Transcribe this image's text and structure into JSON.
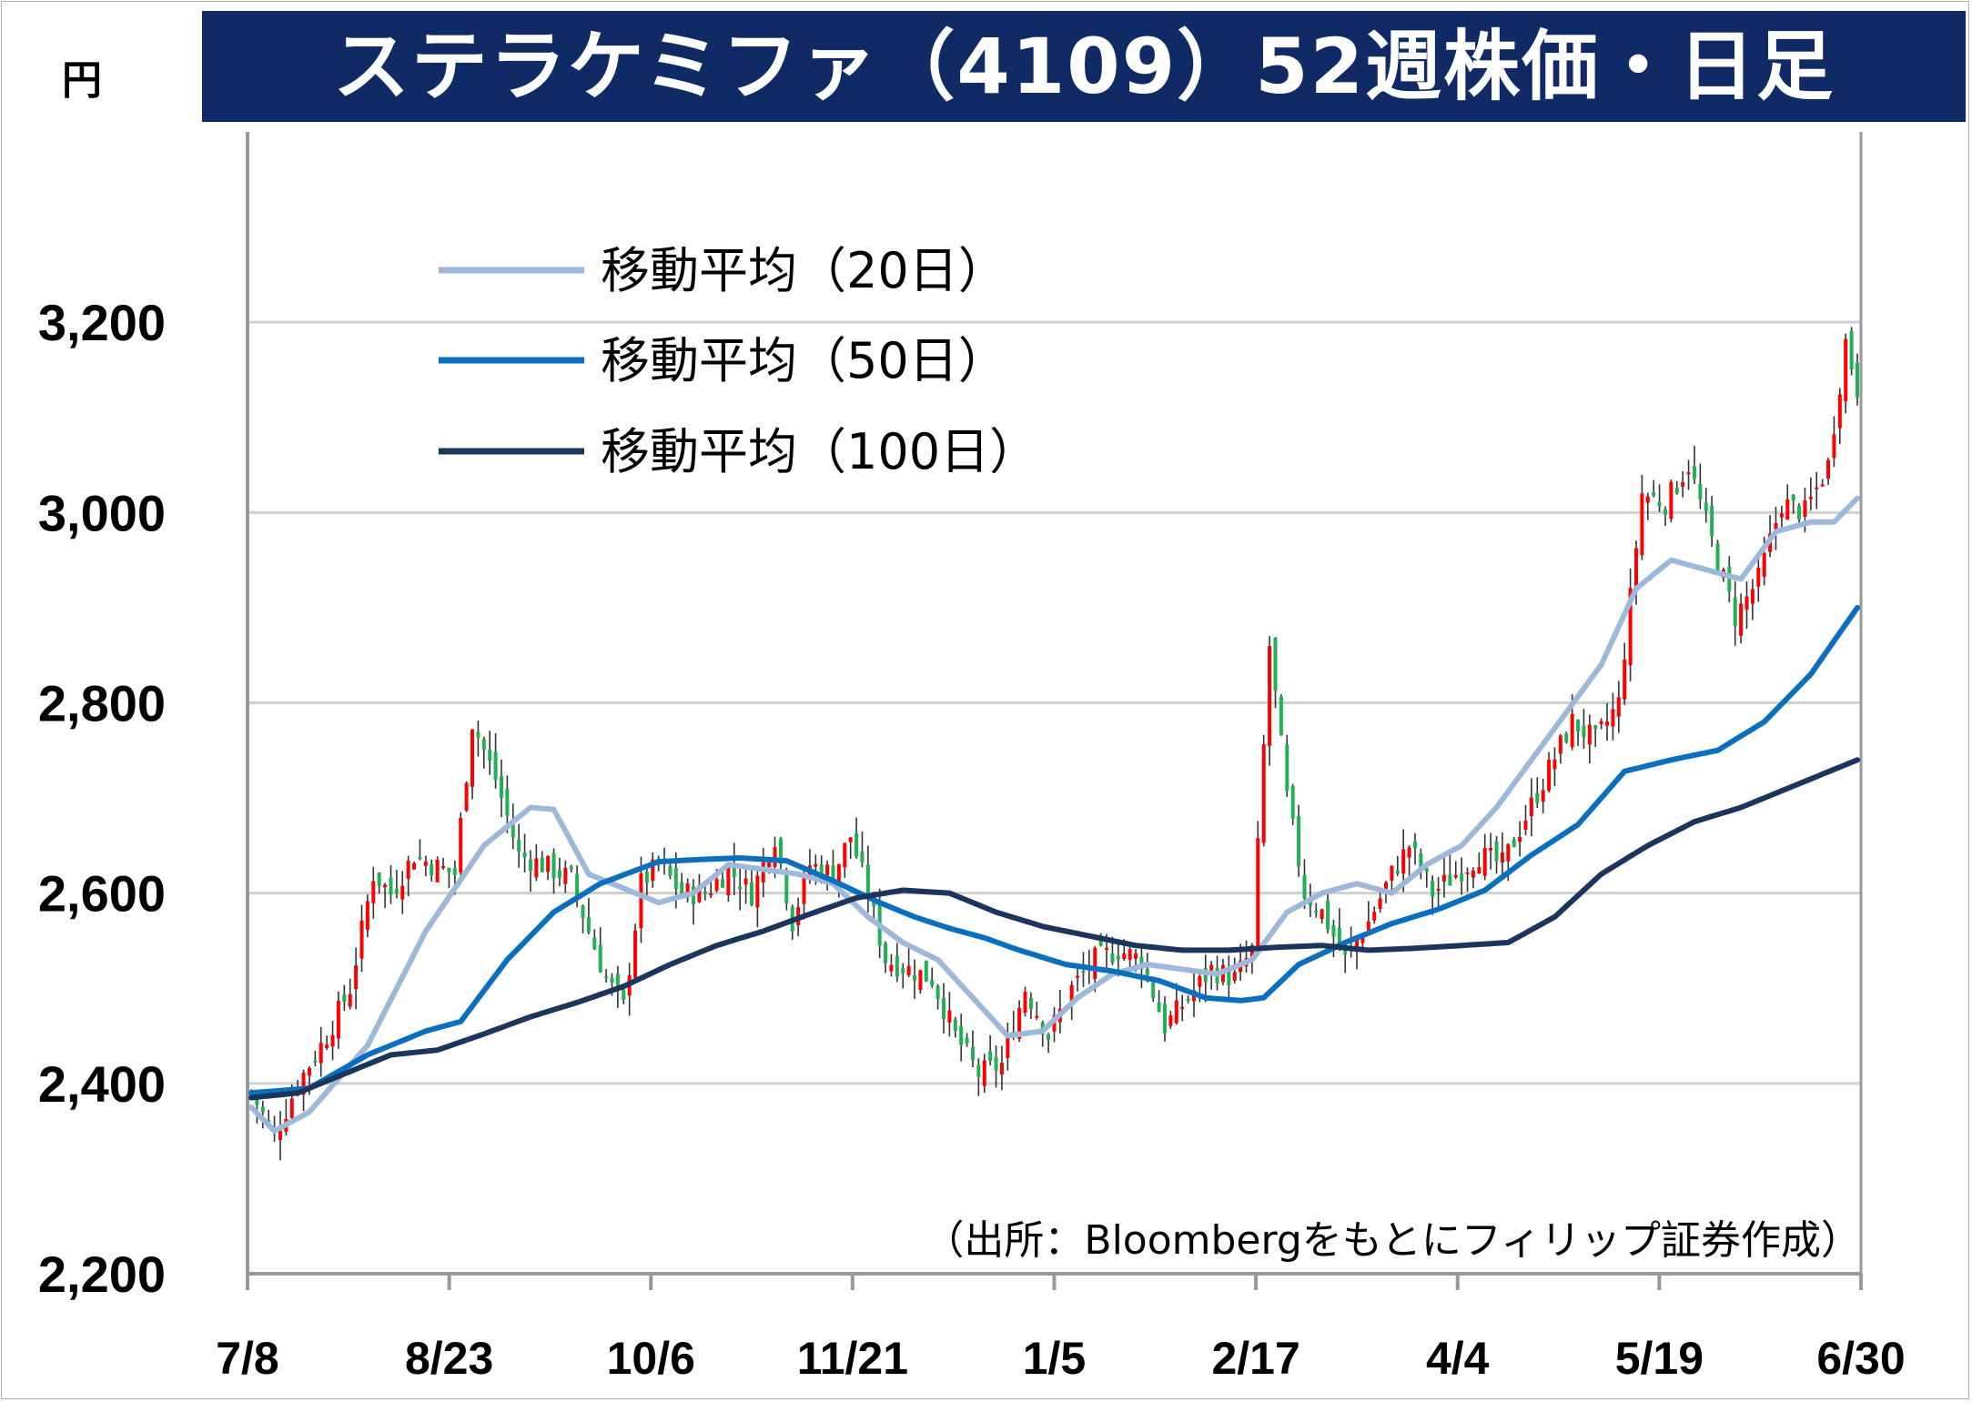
{
  "title": "ステラケミファ（4109）52週株価・日足",
  "unit": "円",
  "source": "（出所：Bloombergをもとにフィリップ証券作成）",
  "colors": {
    "title_bg": "#102a66",
    "up": "#ff0000",
    "down": "#1fb153",
    "ma20": "#9db8db",
    "ma50": "#0b6fc0",
    "ma100": "#1c355e",
    "grid": "#d0d0d0",
    "axis": "#999999"
  },
  "chart_data": {
    "type": "candlestick",
    "title": "ステラケミファ（4109）52週株価・日足",
    "ylabel": "円",
    "ylim": [
      2200,
      3400
    ],
    "yticks": [
      2200,
      2400,
      2600,
      2800,
      3000,
      3200
    ],
    "ytick_labels": [
      "2,200",
      "2,400",
      "2,600",
      "2,800",
      "3,000",
      "3,200"
    ],
    "xtick_labels": [
      "7/8",
      "8/23",
      "10/6",
      "11/21",
      "1/5",
      "2/17",
      "4/4",
      "5/19",
      "6/30"
    ],
    "grid": true,
    "legend_position": "top-left",
    "close_anchors": [
      [
        0,
        2390
      ],
      [
        4,
        2345
      ],
      [
        8,
        2400
      ],
      [
        13,
        2450
      ],
      [
        17,
        2500
      ],
      [
        21,
        2620
      ],
      [
        24,
        2600
      ],
      [
        28,
        2640
      ],
      [
        31,
        2630
      ],
      [
        35,
        2620
      ],
      [
        38,
        2780
      ],
      [
        42,
        2720
      ],
      [
        46,
        2640
      ],
      [
        50,
        2630
      ],
      [
        55,
        2615
      ],
      [
        58,
        2560
      ],
      [
        61,
        2510
      ],
      [
        64,
        2480
      ],
      [
        67,
        2610
      ],
      [
        70,
        2630
      ],
      [
        74,
        2600
      ],
      [
        78,
        2600
      ],
      [
        82,
        2625
      ],
      [
        86,
        2600
      ],
      [
        90,
        2660
      ],
      [
        93,
        2570
      ],
      [
        96,
        2630
      ],
      [
        100,
        2620
      ],
      [
        103,
        2660
      ],
      [
        106,
        2600
      ],
      [
        109,
        2530
      ],
      [
        113,
        2520
      ],
      [
        117,
        2510
      ],
      [
        121,
        2450
      ],
      [
        125,
        2410
      ],
      [
        129,
        2420
      ],
      [
        133,
        2500
      ],
      [
        137,
        2450
      ],
      [
        141,
        2500
      ],
      [
        145,
        2530
      ],
      [
        149,
        2540
      ],
      [
        153,
        2530
      ],
      [
        157,
        2460
      ],
      [
        161,
        2490
      ],
      [
        165,
        2520
      ],
      [
        169,
        2510
      ],
      [
        172,
        2540
      ],
      [
        175,
        2860
      ],
      [
        178,
        2700
      ],
      [
        181,
        2600
      ],
      [
        184,
        2580
      ],
      [
        188,
        2530
      ],
      [
        192,
        2570
      ],
      [
        196,
        2620
      ],
      [
        199,
        2650
      ],
      [
        203,
        2600
      ],
      [
        207,
        2620
      ],
      [
        211,
        2640
      ],
      [
        215,
        2630
      ],
      [
        219,
        2680
      ],
      [
        223,
        2730
      ],
      [
        227,
        2780
      ],
      [
        231,
        2760
      ],
      [
        235,
        2800
      ],
      [
        239,
        3020
      ],
      [
        243,
        3010
      ],
      [
        247,
        3050
      ],
      [
        251,
        2970
      ],
      [
        255,
        2890
      ],
      [
        259,
        2930
      ],
      [
        263,
        3010
      ],
      [
        267,
        3000
      ],
      [
        271,
        3050
      ],
      [
        274,
        3180
      ],
      [
        276,
        3130
      ]
    ],
    "series": [
      {
        "name": "移動平均（20日）",
        "color": "#9db8db",
        "x": [
          0,
          4,
          10,
          20,
          30,
          40,
          48,
          52,
          58,
          64,
          70,
          76,
          82,
          88,
          94,
          100,
          106,
          112,
          118,
          124,
          130,
          136,
          142,
          148,
          154,
          160,
          166,
          172,
          178,
          184,
          190,
          196,
          202,
          208,
          214,
          220,
          226,
          232,
          238,
          244,
          250,
          256,
          262,
          268,
          272,
          276
        ],
        "values": [
          2375,
          2350,
          2370,
          2440,
          2560,
          2650,
          2690,
          2688,
          2620,
          2605,
          2590,
          2600,
          2630,
          2625,
          2620,
          2610,
          2575,
          2548,
          2530,
          2490,
          2450,
          2455,
          2490,
          2515,
          2525,
          2520,
          2515,
          2530,
          2580,
          2600,
          2610,
          2600,
          2630,
          2650,
          2690,
          2740,
          2790,
          2840,
          2920,
          2950,
          2940,
          2930,
          2980,
          2990,
          2990,
          3015
        ]
      },
      {
        "name": "移動平均（50日）",
        "color": "#0b6fc0",
        "x": [
          0,
          10,
          20,
          30,
          36,
          44,
          52,
          60,
          70,
          76,
          84,
          92,
          100,
          108,
          114,
          120,
          126,
          132,
          140,
          148,
          156,
          164,
          170,
          174,
          180,
          188,
          196,
          204,
          212,
          220,
          228,
          236,
          244,
          252,
          260,
          268,
          276
        ],
        "values": [
          2390,
          2395,
          2430,
          2455,
          2465,
          2530,
          2580,
          2610,
          2633,
          2635,
          2637,
          2634,
          2613,
          2590,
          2575,
          2563,
          2553,
          2540,
          2525,
          2518,
          2508,
          2490,
          2487,
          2490,
          2525,
          2548,
          2568,
          2583,
          2603,
          2640,
          2672,
          2728,
          2740,
          2750,
          2780,
          2830,
          2900
        ]
      },
      {
        "name": "移動平均（100日）",
        "color": "#1c355e",
        "x": [
          0,
          8,
          16,
          24,
          32,
          40,
          48,
          56,
          64,
          72,
          80,
          88,
          96,
          104,
          112,
          120,
          128,
          136,
          144,
          152,
          160,
          168,
          176,
          184,
          192,
          200,
          208,
          216,
          224,
          232,
          240,
          248,
          256,
          264,
          270,
          276
        ],
        "values": [
          2385,
          2390,
          2410,
          2430,
          2435,
          2452,
          2470,
          2485,
          2502,
          2525,
          2545,
          2560,
          2578,
          2595,
          2603,
          2600,
          2580,
          2565,
          2555,
          2545,
          2540,
          2540,
          2543,
          2545,
          2540,
          2542,
          2545,
          2548,
          2575,
          2620,
          2650,
          2675,
          2690,
          2710,
          2725,
          2740
        ]
      }
    ]
  }
}
